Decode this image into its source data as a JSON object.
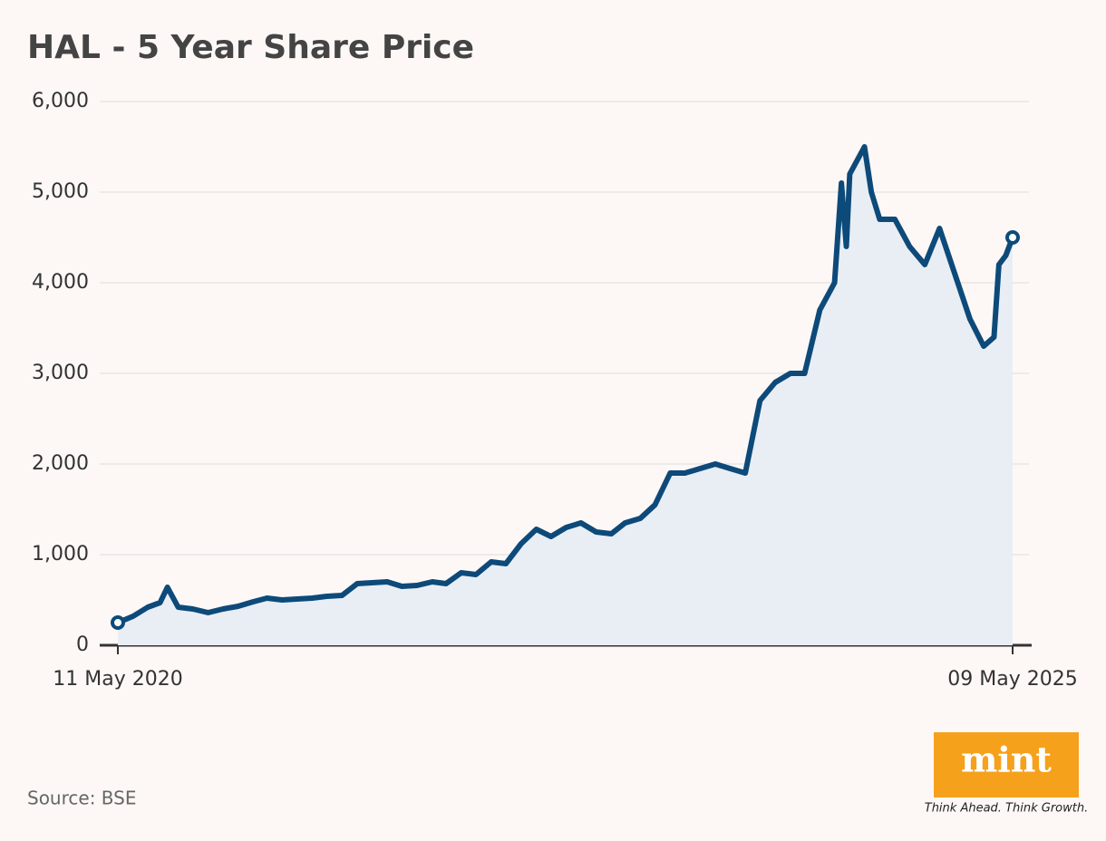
{
  "chart_data": {
    "type": "line",
    "title": "HAL - 5 Year Share Price",
    "x": [
      "11 May 2020",
      "11 Jun 2020",
      "11 Jul 2020",
      "05 Aug 2020",
      "20 Aug 2020",
      "11 Sep 2020",
      "11 Oct 2020",
      "11 Nov 2020",
      "11 Dec 2020",
      "11 Jan 2021",
      "11 Feb 2021",
      "11 Mar 2021",
      "11 Apr 2021",
      "11 May 2021",
      "11 Jun 2021",
      "11 Jul 2021",
      "11 Aug 2021",
      "11 Sep 2021",
      "11 Oct 2021",
      "11 Nov 2021",
      "11 Dec 2021",
      "11 Jan 2022",
      "11 Feb 2022",
      "11 Mar 2022",
      "11 Apr 2022",
      "11 May 2022",
      "11 Jun 2022",
      "11 Jul 2022",
      "11 Aug 2022",
      "11 Sep 2022",
      "11 Oct 2022",
      "11 Nov 2022",
      "11 Dec 2022",
      "11 Jan 2023",
      "11 Feb 2023",
      "11 Mar 2023",
      "11 Apr 2023",
      "11 May 2023",
      "11 Jun 2023",
      "11 Jul 2023",
      "11 Aug 2023",
      "11 Sep 2023",
      "11 Oct 2023",
      "11 Nov 2023",
      "11 Dec 2023",
      "11 Jan 2024",
      "11 Feb 2024",
      "11 Mar 2024",
      "11 Apr 2024",
      "11 May 2024",
      "25 May 2024",
      "04 Jun 2024",
      "11 Jun 2024",
      "11 Jul 2024",
      "25 Jul 2024",
      "11 Aug 2024",
      "11 Sep 2024",
      "11 Oct 2024",
      "11 Nov 2024",
      "11 Dec 2024",
      "11 Jan 2025",
      "11 Feb 2025",
      "11 Mar 2025",
      "01 Apr 2025",
      "11 Apr 2025",
      "25 Apr 2025",
      "09 May 2025"
    ],
    "series": [
      {
        "name": "HAL",
        "color": "#0d4a7a",
        "values": [
          250,
          320,
          420,
          470,
          640,
          420,
          400,
          360,
          400,
          430,
          480,
          520,
          500,
          510,
          520,
          540,
          550,
          680,
          690,
          700,
          650,
          660,
          700,
          680,
          800,
          780,
          920,
          900,
          1120,
          1280,
          1200,
          1300,
          1350,
          1250,
          1230,
          1350,
          1400,
          1550,
          1900,
          1900,
          1950,
          2000,
          1950,
          1900,
          2700,
          2900,
          3000,
          3000,
          3700,
          4000,
          5100,
          4400,
          5200,
          5500,
          5000,
          4700,
          4700,
          4400,
          4200,
          4600,
          4100,
          3600,
          3300,
          3400,
          4200,
          4300,
          4500
        ]
      }
    ],
    "xlim": [
      "11 May 2020",
      "09 May 2025"
    ],
    "xticks": [
      "11 May 2020",
      "09 May 2025"
    ],
    "ylim": [
      0,
      6000
    ],
    "yticks": [
      0,
      {
        "value": 1000,
        "label": "1,000"
      },
      {
        "value": 2000,
        "label": "2,000"
      },
      {
        "value": 3000,
        "label": "3,000"
      },
      {
        "value": 4000,
        "label": "4,000"
      },
      {
        "value": 5000,
        "label": "5,000"
      },
      {
        "value": 6000,
        "label": "6,000"
      }
    ],
    "grid": true
  },
  "footer": {
    "source": "Source: BSE",
    "logo": "mint",
    "tagline": "Think Ahead. Think Growth."
  }
}
